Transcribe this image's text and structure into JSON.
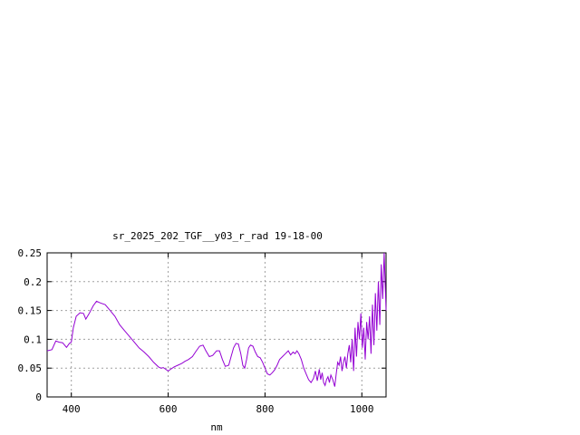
{
  "chart_data": {
    "type": "line",
    "title": "sr_2025_202_TGF__y03_r_rad 19-18-00",
    "xlabel": "nm",
    "ylabel": "",
    "xlim": [
      350,
      1050
    ],
    "ylim": [
      0,
      0.25
    ],
    "xticks": [
      400,
      600,
      800,
      1000
    ],
    "xtick_labels": [
      "400",
      "600",
      "800",
      "1000"
    ],
    "yticks": [
      0,
      0.05,
      0.1,
      0.15,
      0.2,
      0.25
    ],
    "ytick_labels": [
      "0",
      "0.05",
      "0.1",
      "0.15",
      "0.2",
      "0.25"
    ],
    "grid": true,
    "legend": "none",
    "series": [
      {
        "color": "#9400d3",
        "x": [
          350,
          360,
          368,
          375,
          382,
          390,
          396,
          400,
          404,
          410,
          418,
          425,
          430,
          437,
          445,
          452,
          460,
          470,
          480,
          490,
          500,
          510,
          520,
          530,
          540,
          550,
          560,
          570,
          580,
          585,
          590,
          595,
          600,
          605,
          612,
          620,
          628,
          635,
          642,
          650,
          658,
          665,
          672,
          678,
          685,
          692,
          700,
          706,
          712,
          718,
          725,
          730,
          735,
          740,
          745,
          750,
          754,
          758,
          762,
          766,
          770,
          775,
          780,
          785,
          790,
          795,
          800,
          805,
          810,
          815,
          820,
          825,
          830,
          836,
          842,
          848,
          853,
          858,
          862,
          866,
          870,
          875,
          880,
          885,
          890,
          895,
          900,
          904,
          908,
          912,
          915,
          918,
          921,
          924,
          927,
          930,
          933,
          936,
          940,
          944,
          947,
          950,
          953,
          956,
          959,
          962,
          965,
          968,
          971,
          974,
          977,
          980,
          983,
          986,
          989,
          992,
          995,
          998,
          1001,
          1004,
          1007,
          1010,
          1013,
          1016,
          1019,
          1022,
          1025,
          1028,
          1031,
          1034,
          1037,
          1040,
          1043,
          1046,
          1050
        ],
        "y": [
          0.08,
          0.082,
          0.097,
          0.095,
          0.094,
          0.086,
          0.093,
          0.095,
          0.12,
          0.14,
          0.146,
          0.145,
          0.135,
          0.145,
          0.158,
          0.166,
          0.163,
          0.16,
          0.15,
          0.14,
          0.125,
          0.115,
          0.105,
          0.095,
          0.085,
          0.078,
          0.07,
          0.06,
          0.052,
          0.05,
          0.051,
          0.048,
          0.045,
          0.048,
          0.052,
          0.055,
          0.058,
          0.062,
          0.065,
          0.07,
          0.08,
          0.088,
          0.09,
          0.08,
          0.07,
          0.072,
          0.08,
          0.08,
          0.065,
          0.053,
          0.055,
          0.07,
          0.085,
          0.093,
          0.092,
          0.075,
          0.055,
          0.05,
          0.065,
          0.085,
          0.09,
          0.088,
          0.078,
          0.07,
          0.068,
          0.06,
          0.05,
          0.04,
          0.038,
          0.042,
          0.047,
          0.055,
          0.065,
          0.07,
          0.075,
          0.08,
          0.073,
          0.078,
          0.075,
          0.08,
          0.075,
          0.065,
          0.05,
          0.04,
          0.03,
          0.025,
          0.032,
          0.045,
          0.028,
          0.048,
          0.03,
          0.042,
          0.025,
          0.02,
          0.03,
          0.035,
          0.025,
          0.038,
          0.03,
          0.018,
          0.04,
          0.06,
          0.055,
          0.07,
          0.045,
          0.06,
          0.07,
          0.05,
          0.075,
          0.09,
          0.06,
          0.1,
          0.045,
          0.12,
          0.07,
          0.13,
          0.1,
          0.145,
          0.085,
          0.12,
          0.065,
          0.13,
          0.1,
          0.14,
          0.075,
          0.16,
          0.09,
          0.18,
          0.115,
          0.2,
          0.125,
          0.23,
          0.17,
          0.25,
          0.15
        ]
      }
    ]
  }
}
